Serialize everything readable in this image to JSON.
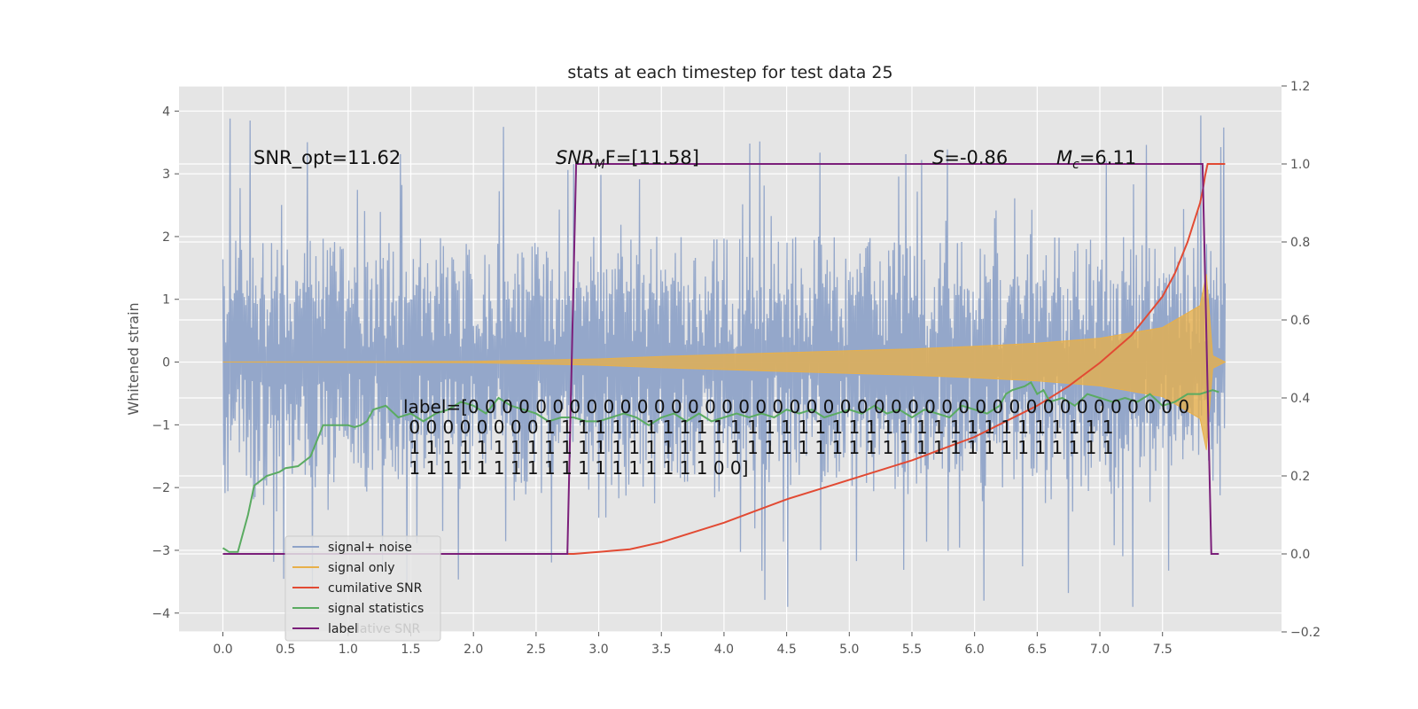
{
  "chart_data": {
    "type": "line",
    "title": "stats at each timestep for test data 25",
    "ylabel": "Whitened strain",
    "xlabel": "",
    "xlim": [
      -0.35,
      8.45
    ],
    "ylim": [
      -4.3,
      4.4
    ],
    "y2lim": [
      -0.2,
      1.2
    ],
    "xticks": [
      "0.0",
      "0.5",
      "1.0",
      "1.5",
      "2.0",
      "2.5",
      "3.0",
      "3.5",
      "4.0",
      "4.5",
      "5.0",
      "5.5",
      "6.0",
      "6.5",
      "7.0",
      "7.5"
    ],
    "yticks": [
      "4",
      "3",
      "2",
      "1",
      "0",
      "−1",
      "−2",
      "−3",
      "−4"
    ],
    "y2ticks": [
      "1.2",
      "1.0",
      "0.8",
      "0.6",
      "0.4",
      "0.2",
      "0.0",
      "−0.2"
    ],
    "grid": true,
    "legend_position": "lower-left",
    "legend_overlap_text": "lative SNR",
    "annotations": {
      "snr_opt": "SNR_opt=11.62",
      "snr_mf": "SNR",
      "snr_mf_sub": "M",
      "snr_mf_tail": "F=[11.58]",
      "stat_s": "S",
      "stat_s_value": "=-0.86",
      "mc": "M",
      "mc_sub": "c",
      "mc_value": "=6.11"
    },
    "label_text": [
      "label=[0 0 0 0 0 0 0 0 0 0 0 0 0 0 0 0 0 0 0 0 0 0 0 0 0 0 0 0 0 0 0 0 0 0 0 0 0 0 0 0 0 0 0",
      " 0 0 0 0 0 0 0 0 1 1 1 1 1 1 1 1 1 1 1 1 1 1 1 1 1 1 1 1 1 1 1 1 1 1 1 1 1 1 1 1 1 1",
      " 1 1 1 1 1 1 1 1 1 1 1 1 1 1 1 1 1 1 1 1 1 1 1 1 1 1 1 1 1 1 1 1 1 1 1 1 1 1 1 1 1 1",
      " 1 1 1 1 1 1 1 1 1 1 1 1 1 1 1 1 1 1 0 0]"
    ],
    "series": [
      {
        "name": "signal+ noise",
        "color": "#8fa3c8",
        "axis": "left",
        "x_range": [
          0.0,
          8.0
        ],
        "noise_envelope": {
          "typical_max": 2.0,
          "peak_max": 4.05,
          "typical_min": -1.7,
          "peak_min": -3.9
        }
      },
      {
        "name": "signal only",
        "color": "#e8b04a",
        "axis": "left",
        "x": [
          0.0,
          2.0,
          3.0,
          3.5,
          4.0,
          4.5,
          5.0,
          5.5,
          6.0,
          6.5,
          7.0,
          7.5,
          7.8,
          7.85,
          7.9,
          8.0
        ],
        "amplitude": [
          0.0,
          0.01,
          0.05,
          0.09,
          0.12,
          0.15,
          0.18,
          0.21,
          0.25,
          0.3,
          0.38,
          0.55,
          0.9,
          1.4,
          0.1,
          0.0
        ]
      },
      {
        "name": "cumilative SNR",
        "color": "#e24a33",
        "axis": "right",
        "x": [
          0.0,
          2.5,
          2.8,
          3.0,
          3.25,
          3.5,
          3.75,
          4.0,
          4.25,
          4.5,
          4.75,
          5.0,
          5.25,
          5.5,
          5.75,
          6.0,
          6.25,
          6.5,
          6.75,
          7.0,
          7.25,
          7.5,
          7.6,
          7.7,
          7.75,
          7.8,
          7.82,
          7.84,
          7.86,
          7.9,
          8.0
        ],
        "y": [
          0.0,
          0.0,
          0.0,
          0.005,
          0.012,
          0.03,
          0.055,
          0.08,
          0.11,
          0.14,
          0.165,
          0.19,
          0.215,
          0.24,
          0.27,
          0.3,
          0.34,
          0.38,
          0.43,
          0.49,
          0.56,
          0.66,
          0.72,
          0.8,
          0.85,
          0.9,
          0.93,
          0.97,
          1.0,
          1.0,
          1.0
        ]
      },
      {
        "name": "signal statistics",
        "color": "#5aab61",
        "axis": "right",
        "x": [
          0.0,
          0.05,
          0.12,
          0.2,
          0.25,
          0.35,
          0.45,
          0.5,
          0.6,
          0.7,
          0.8,
          0.85,
          0.9,
          1.0,
          1.05,
          1.1,
          1.15,
          1.2,
          1.3,
          1.4,
          1.5,
          1.6,
          1.7,
          1.8,
          1.9,
          2.0,
          2.1,
          2.2,
          2.3,
          2.4,
          2.5,
          2.6,
          2.7,
          2.8,
          2.9,
          3.0,
          3.1,
          3.2,
          3.3,
          3.4,
          3.5,
          3.6,
          3.7,
          3.8,
          3.9,
          4.0,
          4.1,
          4.2,
          4.3,
          4.4,
          4.5,
          4.6,
          4.7,
          4.8,
          4.9,
          5.0,
          5.1,
          5.2,
          5.3,
          5.4,
          5.5,
          5.6,
          5.7,
          5.8,
          5.9,
          6.0,
          6.1,
          6.2,
          6.25,
          6.3,
          6.4,
          6.45,
          6.5,
          6.55,
          6.6,
          6.7,
          6.8,
          6.9,
          7.0,
          7.1,
          7.2,
          7.3,
          7.4,
          7.5,
          7.6,
          7.7,
          7.8,
          7.9,
          7.95
        ],
        "y": [
          0.015,
          0.005,
          0.005,
          0.1,
          0.175,
          0.2,
          0.21,
          0.22,
          0.225,
          0.25,
          0.33,
          0.33,
          0.33,
          0.33,
          0.325,
          0.33,
          0.34,
          0.37,
          0.38,
          0.35,
          0.36,
          0.34,
          0.36,
          0.37,
          0.39,
          0.38,
          0.36,
          0.4,
          0.38,
          0.37,
          0.36,
          0.34,
          0.35,
          0.35,
          0.34,
          0.34,
          0.35,
          0.36,
          0.35,
          0.33,
          0.35,
          0.36,
          0.34,
          0.36,
          0.34,
          0.35,
          0.36,
          0.35,
          0.36,
          0.35,
          0.37,
          0.36,
          0.37,
          0.35,
          0.36,
          0.37,
          0.36,
          0.38,
          0.36,
          0.37,
          0.35,
          0.37,
          0.36,
          0.35,
          0.38,
          0.37,
          0.36,
          0.38,
          0.41,
          0.42,
          0.43,
          0.44,
          0.41,
          0.42,
          0.39,
          0.4,
          0.38,
          0.41,
          0.4,
          0.39,
          0.4,
          0.39,
          0.41,
          0.38,
          0.39,
          0.41,
          0.41,
          0.42,
          0.415
        ]
      },
      {
        "name": "label",
        "color": "#7b1f7a",
        "axis": "right",
        "x": [
          0.0,
          2.75,
          2.82,
          7.82,
          7.89,
          7.95
        ],
        "y": [
          0.0,
          0.0,
          1.0,
          1.0,
          0.0,
          0.0
        ]
      }
    ]
  }
}
